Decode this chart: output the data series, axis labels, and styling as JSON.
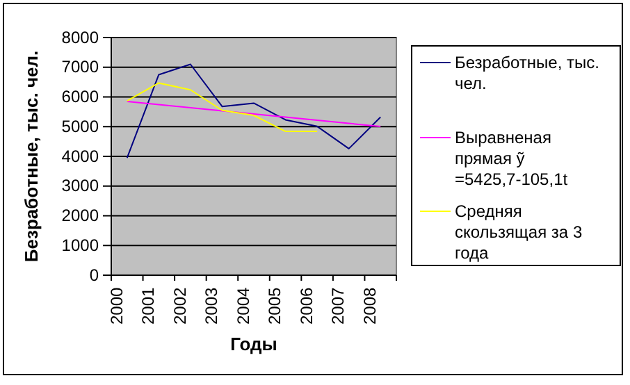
{
  "chart_data": {
    "type": "line",
    "categories": [
      "2000",
      "2001",
      "2002",
      "2003",
      "2004",
      "2005",
      "2006",
      "2007",
      "2008"
    ],
    "xlabel": "Годы",
    "ylabel": "Безработные, тыс. чел.",
    "ylim": [
      0,
      8000
    ],
    "yticks": [
      0,
      1000,
      2000,
      3000,
      4000,
      5000,
      6000,
      7000,
      8000
    ],
    "grid": "y",
    "legend": "right",
    "marker": "none",
    "series": [
      {
        "name": "Безработные, тыс. чел.",
        "color": "#000080",
        "values": [
          3950,
          6750,
          7100,
          5680,
          5790,
          5230,
          5010,
          4260,
          5320
        ]
      },
      {
        "name": "Выравненая прямая ỹ =5425,7-105,1t",
        "color": "#ff00ff",
        "values": [
          5846,
          5741,
          5636,
          5531,
          5426,
          5321,
          5216,
          5110,
          5005
        ]
      },
      {
        "name": "Средняя скользящая за 3 года",
        "color": "#ffff00",
        "values": [
          5870,
          6470,
          6240,
          5550,
          5380,
          4840,
          4840,
          null,
          null
        ]
      }
    ]
  }
}
